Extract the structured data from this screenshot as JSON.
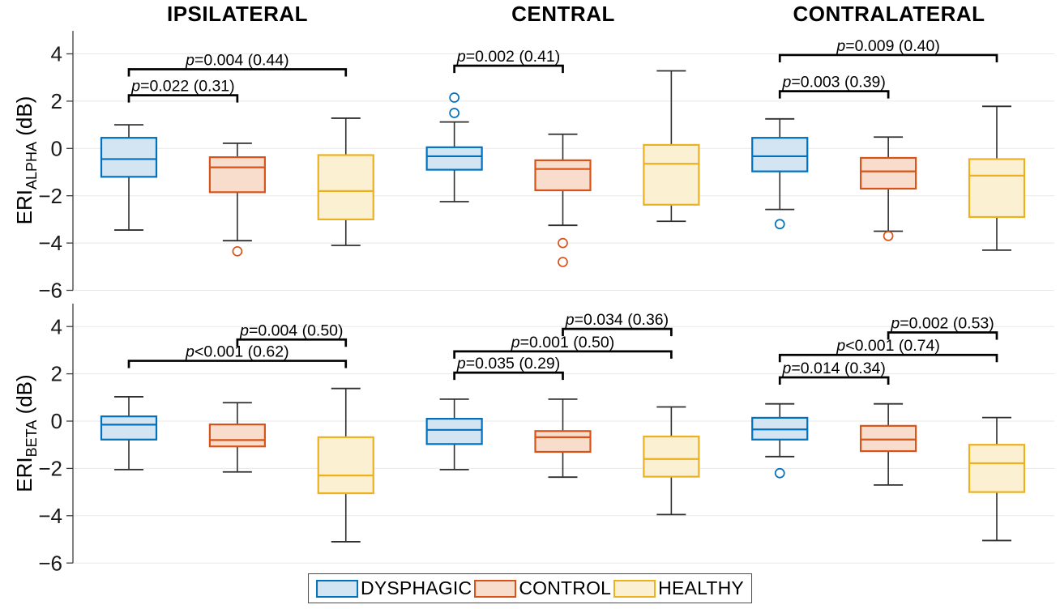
{
  "chart_data": {
    "type": "box",
    "groups": [
      "IPSILATERAL",
      "CENTRAL",
      "CONTRALATERAL"
    ],
    "series": [
      "DYSPHAGIC",
      "CONTROL",
      "HEALTHY"
    ],
    "yticks": [
      4,
      2,
      0,
      -2,
      -4,
      -6
    ],
    "ylim": [
      -6,
      5
    ],
    "grid": "horizontal-only",
    "legend_position": "bottom-center",
    "style": {
      "series": [
        {
          "name": "DYSPHAGIC",
          "stroke": "#0072BD",
          "fill": "#D3E5F3"
        },
        {
          "name": "CONTROL",
          "stroke": "#D95319",
          "fill": "#F8DCCC"
        },
        {
          "name": "HEALTHY",
          "stroke": "#EDB120",
          "fill": "#FBF0D1"
        }
      ],
      "whisker": "#2F2F2F",
      "grid": "#E8E8E8",
      "axis": "#3C3C3C",
      "bracket": "#000000"
    },
    "rows": [
      {
        "id": "alpha",
        "ylabel": {
          "main": "ERI",
          "sub": "ALPHA",
          "unit": " (dB)"
        },
        "boxes": [
          {
            "group": "IPSILATERAL",
            "series": "DYSPHAGIC",
            "whislo": -3.45,
            "q1": -1.2,
            "med": -0.45,
            "q3": 0.45,
            "whishi": 1.0,
            "outliers": []
          },
          {
            "group": "IPSILATERAL",
            "series": "CONTROL",
            "whislo": -3.9,
            "q1": -1.85,
            "med": -0.8,
            "q3": -0.37,
            "whishi": 0.22,
            "outliers": [
              -4.35
            ]
          },
          {
            "group": "IPSILATERAL",
            "series": "HEALTHY",
            "whislo": -4.1,
            "q1": -3.0,
            "med": -1.8,
            "q3": -0.28,
            "whishi": 1.28,
            "outliers": []
          },
          {
            "group": "CENTRAL",
            "series": "DYSPHAGIC",
            "whislo": -2.25,
            "q1": -0.9,
            "med": -0.33,
            "q3": 0.05,
            "whishi": 1.12,
            "outliers": [
              2.15,
              1.5
            ]
          },
          {
            "group": "CENTRAL",
            "series": "CONTROL",
            "whislo": -3.25,
            "q1": -1.77,
            "med": -0.87,
            "q3": -0.5,
            "whishi": 0.6,
            "outliers": [
              -4.0,
              -4.8
            ]
          },
          {
            "group": "CENTRAL",
            "series": "HEALTHY",
            "whislo": -3.08,
            "q1": -2.38,
            "med": -0.65,
            "q3": 0.15,
            "whishi": 3.28,
            "outliers": []
          },
          {
            "group": "CONTRALATERAL",
            "series": "DYSPHAGIC",
            "whislo": -2.58,
            "q1": -0.97,
            "med": -0.33,
            "q3": 0.45,
            "whishi": 1.25,
            "outliers": [
              -3.2
            ]
          },
          {
            "group": "CONTRALATERAL",
            "series": "CONTROL",
            "whislo": -3.5,
            "q1": -1.7,
            "med": -0.97,
            "q3": -0.4,
            "whishi": 0.48,
            "outliers": [
              -3.7
            ]
          },
          {
            "group": "CONTRALATERAL",
            "series": "HEALTHY",
            "whislo": -4.3,
            "q1": -2.9,
            "med": -1.15,
            "q3": -0.45,
            "whishi": 1.78,
            "outliers": []
          }
        ],
        "brackets": [
          {
            "from": 0,
            "to": 2,
            "y": 3.35,
            "label": "p=0.004 (0.44)"
          },
          {
            "from": 0,
            "to": 1,
            "y": 2.25,
            "label": "p=0.022 (0.31)"
          },
          {
            "from": 3,
            "to": 4,
            "y": 3.5,
            "label": "p=0.002 (0.41)"
          },
          {
            "from": 6,
            "to": 8,
            "y": 3.95,
            "label": "p=0.009 (0.40)"
          },
          {
            "from": 6,
            "to": 7,
            "y": 2.42,
            "label": "p=0.003 (0.39)"
          }
        ]
      },
      {
        "id": "beta",
        "ylabel": {
          "main": "ERI",
          "sub": "BETA",
          "unit": " (dB)"
        },
        "boxes": [
          {
            "group": "IPSILATERAL",
            "series": "DYSPHAGIC",
            "whislo": -2.05,
            "q1": -0.78,
            "med": -0.15,
            "q3": 0.2,
            "whishi": 1.03,
            "outliers": []
          },
          {
            "group": "IPSILATERAL",
            "series": "CONTROL",
            "whislo": -2.15,
            "q1": -1.07,
            "med": -0.8,
            "q3": -0.14,
            "whishi": 0.78,
            "outliers": []
          },
          {
            "group": "IPSILATERAL",
            "series": "HEALTHY",
            "whislo": -5.1,
            "q1": -3.05,
            "med": -2.3,
            "q3": -0.68,
            "whishi": 1.38,
            "outliers": []
          },
          {
            "group": "CENTRAL",
            "series": "DYSPHAGIC",
            "whislo": -2.05,
            "q1": -0.97,
            "med": -0.37,
            "q3": 0.1,
            "whishi": 0.93,
            "outliers": []
          },
          {
            "group": "CENTRAL",
            "series": "CONTROL",
            "whislo": -2.37,
            "q1": -1.3,
            "med": -0.68,
            "q3": -0.42,
            "whishi": 0.93,
            "outliers": []
          },
          {
            "group": "CENTRAL",
            "series": "HEALTHY",
            "whislo": -3.95,
            "q1": -2.35,
            "med": -1.6,
            "q3": -0.65,
            "whishi": 0.6,
            "outliers": []
          },
          {
            "group": "CONTRALATERAL",
            "series": "DYSPHAGIC",
            "whislo": -1.5,
            "q1": -0.78,
            "med": -0.35,
            "q3": 0.14,
            "whishi": 0.73,
            "outliers": [
              -2.2
            ]
          },
          {
            "group": "CONTRALATERAL",
            "series": "CONTROL",
            "whislo": -2.7,
            "q1": -1.27,
            "med": -0.78,
            "q3": -0.2,
            "whishi": 0.73,
            "outliers": []
          },
          {
            "group": "CONTRALATERAL",
            "series": "HEALTHY",
            "whislo": -5.05,
            "q1": -3.0,
            "med": -1.78,
            "q3": -1.0,
            "whishi": 0.15,
            "outliers": []
          }
        ],
        "brackets": [
          {
            "from": 1,
            "to": 2,
            "y": 3.45,
            "label": "p=0.004 (0.50)"
          },
          {
            "from": 0,
            "to": 2,
            "y": 2.55,
            "label": "p<0.001 (0.62)"
          },
          {
            "from": 4,
            "to": 5,
            "y": 3.9,
            "label": "p=0.034 (0.36)"
          },
          {
            "from": 3,
            "to": 5,
            "y": 2.95,
            "label": "p=0.001 (0.50)"
          },
          {
            "from": 3,
            "to": 4,
            "y": 2.05,
            "label": "p=0.035 (0.29)"
          },
          {
            "from": 7,
            "to": 8,
            "y": 3.75,
            "label": "p=0.002 (0.53)"
          },
          {
            "from": 6,
            "to": 8,
            "y": 2.8,
            "label": "p<0.001 (0.74)"
          },
          {
            "from": 6,
            "to": 7,
            "y": 1.85,
            "label": "p=0.014 (0.34)"
          }
        ]
      }
    ]
  }
}
